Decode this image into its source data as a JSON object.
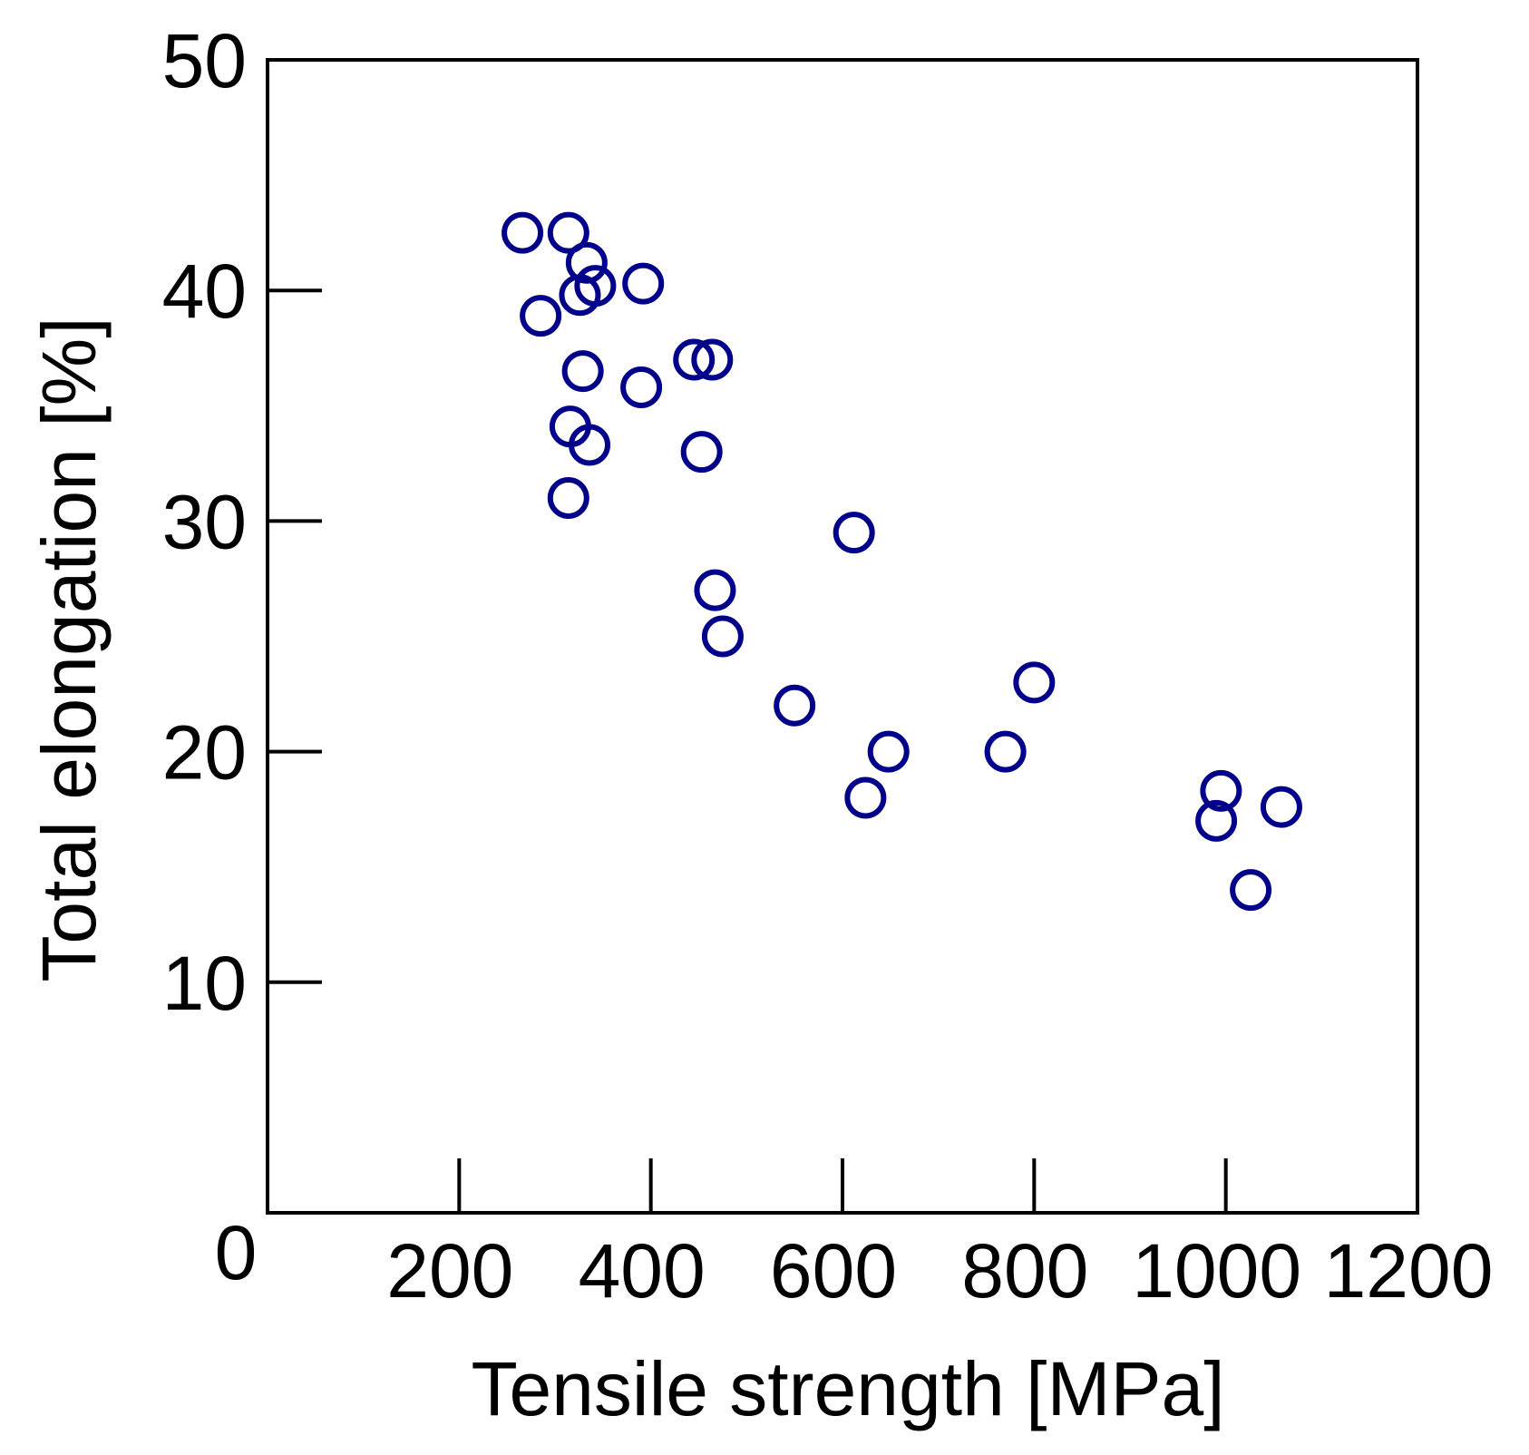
{
  "chart_data": {
    "type": "scatter",
    "title": "",
    "xlabel": "Tensile strength [MPa]",
    "ylabel": "Total elongation [%]",
    "xlim": [
      0,
      1200
    ],
    "ylim": [
      0,
      50
    ],
    "origin_label": "0",
    "xticks": [
      200,
      400,
      600,
      800,
      1000,
      1200
    ],
    "xtick_labels": [
      "200",
      "400",
      "600",
      "800",
      "1000",
      "1200"
    ],
    "yticks": [
      10,
      20,
      30,
      40,
      50
    ],
    "ytick_labels": [
      "10",
      "20",
      "30",
      "40",
      "50"
    ],
    "grid": false,
    "legend": "none",
    "marker": "open-circle",
    "marker_color": "#00008B",
    "series": [
      {
        "x": [
          266,
          314,
          333,
          326,
          342,
          392,
          285,
          329,
          390,
          445,
          464,
          316,
          336,
          453,
          314,
          612,
          467,
          475,
          550,
          648,
          624,
          770,
          800,
          995,
          990,
          1058,
          1026
        ],
        "y": [
          42.5,
          42.5,
          41.2,
          39.8,
          40.2,
          40.3,
          38.9,
          36.5,
          35.8,
          37.0,
          37.0,
          34.1,
          33.3,
          33.0,
          31.0,
          29.5,
          27.0,
          25.0,
          22.0,
          20.0,
          18.0,
          20.0,
          23.0,
          18.3,
          17.0,
          17.6,
          14.0
        ]
      }
    ]
  }
}
